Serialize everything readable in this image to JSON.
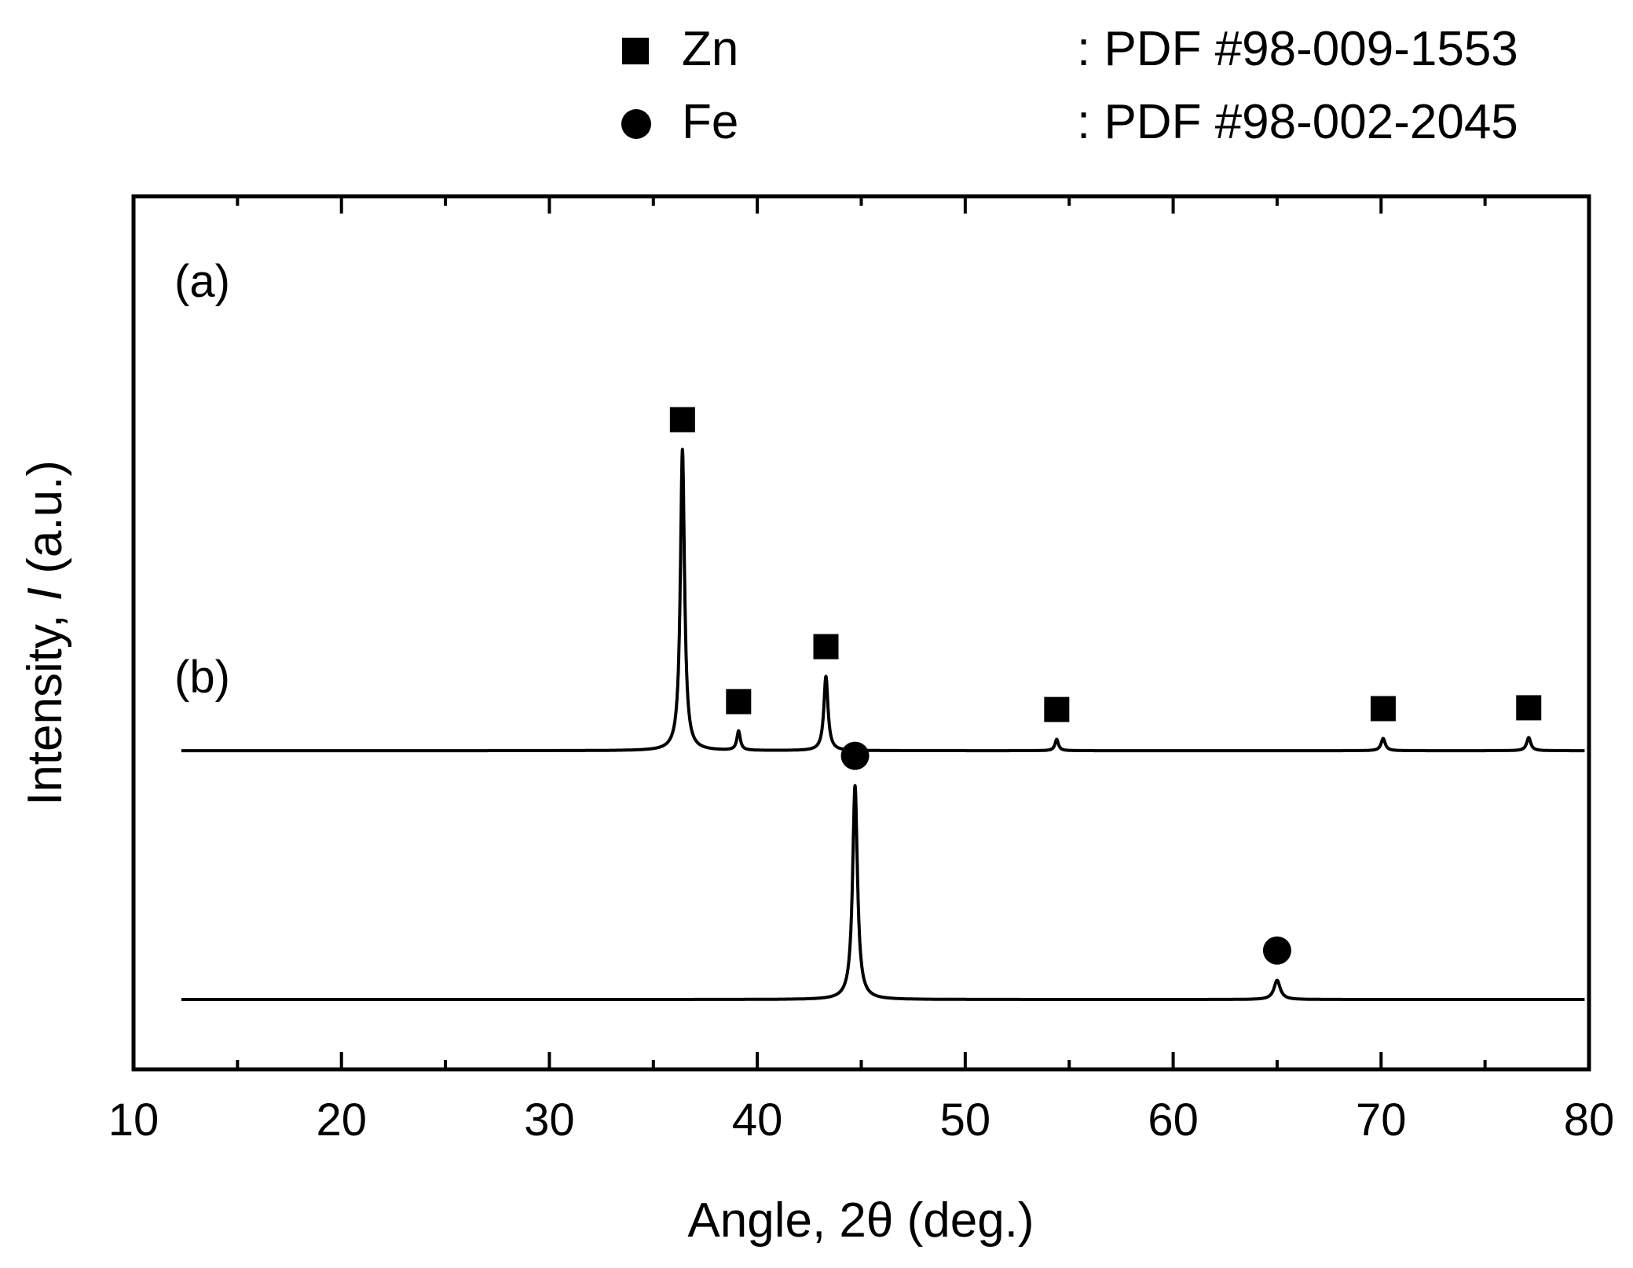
{
  "legend": [
    {
      "marker": "square",
      "label": "Zn",
      "ref": ": PDF #98-009-1553"
    },
    {
      "marker": "circle",
      "label": "Fe",
      "ref": ": PDF #98-002-2045"
    }
  ],
  "chart_data": {
    "type": "line",
    "xlabel": "Angle, 2θ (deg.)",
    "ylabel_parts": {
      "pre": "Intensity, ",
      "italic": "I",
      "post": " (a.u.)"
    },
    "xlim": [
      10,
      80
    ],
    "x_major_ticks": [
      10,
      20,
      30,
      40,
      50,
      60,
      70,
      80
    ],
    "x_tick_labels": [
      "10",
      "20",
      "30",
      "40",
      "50",
      "60",
      "70",
      "80"
    ],
    "x_minor_ticks": [
      15,
      25,
      35,
      45,
      55,
      65,
      75
    ],
    "y_ticks": "none",
    "grid": false,
    "legend_position": "top, above plot",
    "series": [
      {
        "name": "(a)",
        "baseline": 0.365,
        "peaks": [
          {
            "x": 36.4,
            "height": 0.345,
            "width": 0.12,
            "marker": "square"
          },
          {
            "x": 39.1,
            "height": 0.022,
            "width": 0.1,
            "marker": "square"
          },
          {
            "x": 43.3,
            "height": 0.085,
            "width": 0.12,
            "marker": "square"
          },
          {
            "x": 54.4,
            "height": 0.013,
            "width": 0.1,
            "marker": "square"
          },
          {
            "x": 70.1,
            "height": 0.014,
            "width": 0.12,
            "marker": "square"
          },
          {
            "x": 77.1,
            "height": 0.015,
            "width": 0.12,
            "marker": "square"
          }
        ]
      },
      {
        "name": "(b)",
        "baseline": 0.08,
        "peaks": [
          {
            "x": 44.7,
            "height": 0.245,
            "width": 0.14,
            "marker": "circle"
          },
          {
            "x": 65.0,
            "height": 0.022,
            "width": 0.18,
            "marker": "circle"
          }
        ]
      }
    ]
  }
}
